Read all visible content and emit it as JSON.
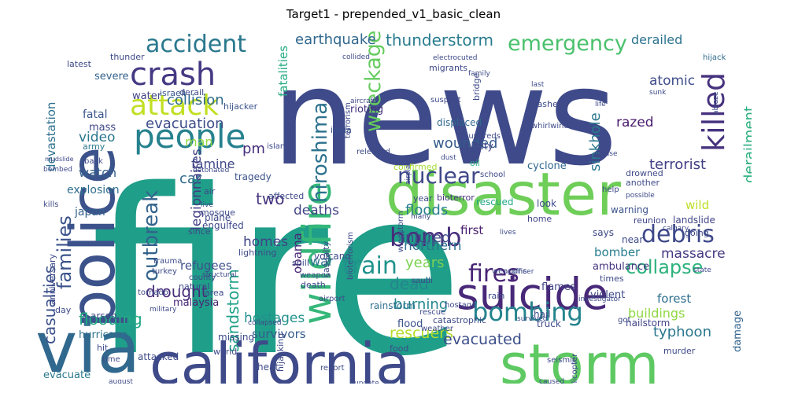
{
  "title": "Target1 - prepended_v1_basic_clean",
  "words": [
    {
      "text": "fire",
      "color": "#1f9e89",
      "vertical": false
    },
    {
      "text": "news",
      "color": "#3e4a89",
      "vertical": false
    },
    {
      "text": "disaster",
      "color": "#6ece58",
      "vertical": false
    },
    {
      "text": "police",
      "color": "#3b528b",
      "vertical": true
    },
    {
      "text": "via",
      "color": "#31688e",
      "vertical": false
    },
    {
      "text": "california",
      "color": "#3e4a89",
      "vertical": false
    },
    {
      "text": "storm",
      "color": "#5ec962",
      "vertical": false
    },
    {
      "text": "suicide",
      "color": "#482878",
      "vertical": false
    },
    {
      "text": "wildfire",
      "color": "#35b779",
      "vertical": true
    },
    {
      "text": "people",
      "color": "#26828e",
      "vertical": false
    },
    {
      "text": "crash",
      "color": "#443983",
      "vertical": false
    },
    {
      "text": "attack",
      "color": "#c2df23",
      "vertical": false
    },
    {
      "text": "accident",
      "color": "#2a788e",
      "vertical": false
    },
    {
      "text": "emergency",
      "color": "#4ac16d",
      "vertical": false
    },
    {
      "text": "killed",
      "color": "#46327e",
      "vertical": true
    },
    {
      "text": "bombing",
      "color": "#25848e",
      "vertical": false
    },
    {
      "text": "fires",
      "color": "#482475",
      "vertical": false
    },
    {
      "text": "debris",
      "color": "#3e4989",
      "vertical": false
    },
    {
      "text": "hiroshima",
      "color": "#2c728e",
      "vertical": true
    },
    {
      "text": "wreckage",
      "color": "#65cb5e",
      "vertical": true
    },
    {
      "text": "families",
      "color": "#3a538b",
      "vertical": true
    },
    {
      "text": "train",
      "color": "#20928c",
      "vertical": false
    },
    {
      "text": "bomb",
      "color": "#472d7b",
      "vertical": false
    },
    {
      "text": "nuclear",
      "color": "#3f4889",
      "vertical": false
    },
    {
      "text": "outbreak",
      "color": "#33638d",
      "vertical": true
    },
    {
      "text": "collapse",
      "color": "#2db27d",
      "vertical": false
    },
    {
      "text": "earthquake",
      "color": "#31688e",
      "vertical": false
    },
    {
      "text": "thunderstorm",
      "color": "#287c8e",
      "vertical": false
    },
    {
      "text": "derailed",
      "color": "#2c738e",
      "vertical": false
    },
    {
      "text": "evacuation",
      "color": "#3d4d8a",
      "vertical": false
    },
    {
      "text": "collision",
      "color": "#2f6b8e",
      "vertical": false
    },
    {
      "text": "wounded",
      "color": "#365c8d",
      "vertical": false
    },
    {
      "text": "razed",
      "color": "#481b6d",
      "vertical": false
    },
    {
      "text": "atomic",
      "color": "#3e4c8a",
      "vertical": false
    },
    {
      "text": "sinkhole",
      "color": "#2a778e",
      "vertical": true
    },
    {
      "text": "derailment",
      "color": "#29af7f",
      "vertical": true
    },
    {
      "text": "terrorist",
      "color": "#424086",
      "vertical": false
    },
    {
      "text": "massacre",
      "color": "#453882",
      "vertical": false
    },
    {
      "text": "forest",
      "color": "#2e6f8e",
      "vertical": false
    },
    {
      "text": "casualties",
      "color": "#3b518b",
      "vertical": true
    },
    {
      "text": "flooding",
      "color": "#22a884",
      "vertical": false
    },
    {
      "text": "drought",
      "color": "#472c7a",
      "vertical": false
    },
    {
      "text": "injured",
      "color": "#3e4a89",
      "vertical": false
    },
    {
      "text": "floods",
      "color": "#27808e",
      "vertical": false
    },
    {
      "text": "deaths",
      "color": "#414487",
      "vertical": false
    },
    {
      "text": "dead",
      "color": "#24868e",
      "vertical": false
    },
    {
      "text": "burning",
      "color": "#23888e",
      "vertical": false
    },
    {
      "text": "rescuers",
      "color": "#b5de2b",
      "vertical": false
    },
    {
      "text": "evacuated",
      "color": "#3c4f8a",
      "vertical": false
    },
    {
      "text": "typhoon",
      "color": "#2a768e",
      "vertical": false
    },
    {
      "text": "buildings",
      "color": "#90d743",
      "vertical": false
    },
    {
      "text": "northern",
      "color": "#2d708e",
      "vertical": false
    },
    {
      "text": "sandstorm",
      "color": "#1fa187",
      "vertical": true
    },
    {
      "text": "hostages",
      "color": "#21918c",
      "vertical": false
    },
    {
      "text": "survivors",
      "color": "#365d8d",
      "vertical": false
    },
    {
      "text": "homes",
      "color": "#414487",
      "vertical": false
    },
    {
      "text": "war",
      "color": "#2c738e",
      "vertical": false
    },
    {
      "text": "two",
      "color": "#46337f",
      "vertical": false
    },
    {
      "text": "years",
      "color": "#7ad151",
      "vertical": false
    },
    {
      "text": "bomber",
      "color": "#287d8e",
      "vertical": false
    },
    {
      "text": "refugees",
      "color": "#3c508b",
      "vertical": false
    },
    {
      "text": "legionnaires",
      "color": "#433d84",
      "vertical": true
    },
    {
      "text": "famine",
      "color": "#3f4788",
      "vertical": false
    },
    {
      "text": "car",
      "color": "#30698e",
      "vertical": false
    },
    {
      "text": "man",
      "color": "#90d743",
      "vertical": false
    },
    {
      "text": "pm",
      "color": "#472f7d",
      "vertical": false
    },
    {
      "text": "video",
      "color": "#2a768e",
      "vertical": false
    },
    {
      "text": "watch",
      "color": "#35608d",
      "vertical": false
    },
    {
      "text": "explosion",
      "color": "#2e6e8e",
      "vertical": false
    },
    {
      "text": "japan",
      "color": "#34618d",
      "vertical": false
    },
    {
      "text": "fatal",
      "color": "#3b528b",
      "vertical": false
    },
    {
      "text": "devastation",
      "color": "#2d708e",
      "vertical": true
    },
    {
      "text": "fatalities",
      "color": "#25ab82",
      "vertical": true
    },
    {
      "text": "obama",
      "color": "#482475",
      "vertical": true
    },
    {
      "text": "first",
      "color": "#481d6f",
      "vertical": false
    },
    {
      "text": "hurricane",
      "color": "#2c728e",
      "vertical": false
    },
    {
      "text": "evacuate",
      "color": "#2a788e",
      "vertical": false
    },
    {
      "text": "rainstorm",
      "color": "#2e6f8e",
      "vertical": false
    },
    {
      "text": "flood",
      "color": "#3b528b",
      "vertical": false
    },
    {
      "text": "hailstorm",
      "color": "#414487",
      "vertical": false
    },
    {
      "text": "damage",
      "color": "#32648e",
      "vertical": true
    },
    {
      "text": "malaysia",
      "color": "#482576",
      "vertical": false
    },
    {
      "text": "ambulance",
      "color": "#463480",
      "vertical": false
    },
    {
      "text": "wild",
      "color": "#bddf26",
      "vertical": false
    },
    {
      "text": "landslide",
      "color": "#414487",
      "vertical": false
    },
    {
      "text": "reunion",
      "color": "#404588",
      "vertical": false
    },
    {
      "text": "mass",
      "color": "#3f4788",
      "vertical": false
    },
    {
      "text": "army",
      "color": "#2a788e",
      "vertical": false
    },
    {
      "text": "water",
      "color": "#414487",
      "vertical": false
    },
    {
      "text": "israeli",
      "color": "#38598c",
      "vertical": false
    },
    {
      "text": "derail",
      "color": "#3e4c8a",
      "vertical": false
    },
    {
      "text": "hijacker",
      "color": "#3a548c",
      "vertical": false
    },
    {
      "text": "hijack",
      "color": "#2f6b8e",
      "vertical": false
    },
    {
      "text": "severe",
      "color": "#33638d",
      "vertical": false
    },
    {
      "text": "latest",
      "color": "#3e4a89",
      "vertical": false
    },
    {
      "text": "thunder",
      "color": "#3e4a89",
      "vertical": false
    },
    {
      "text": "rioting",
      "color": "#46317e",
      "vertical": false
    },
    {
      "text": "india",
      "color": "#3b528b",
      "vertical": false
    },
    {
      "text": "released",
      "color": "#3e4a89",
      "vertical": false
    },
    {
      "text": "displaced",
      "color": "#31688e",
      "vertical": false
    },
    {
      "text": "city",
      "color": "#414487",
      "vertical": false
    },
    {
      "text": "oil",
      "color": "#29af7f",
      "vertical": false
    },
    {
      "text": "school",
      "color": "#3e4a89",
      "vertical": false
    },
    {
      "text": "tragedy",
      "color": "#3b528b",
      "vertical": false
    },
    {
      "text": "island",
      "color": "#3e4a89",
      "vertical": false
    },
    {
      "text": "bioterror",
      "color": "#46307e",
      "vertical": false
    },
    {
      "text": "rescued",
      "color": "#22a785",
      "vertical": false
    },
    {
      "text": "year",
      "color": "#3e4a89",
      "vertical": false
    },
    {
      "text": "confirmed",
      "color": "#a8db34",
      "vertical": false
    },
    {
      "text": "cyclone",
      "color": "#31688e",
      "vertical": false
    },
    {
      "text": "look",
      "color": "#3e4a89",
      "vertical": false
    },
    {
      "text": "home",
      "color": "#414487",
      "vertical": false
    },
    {
      "text": "warning",
      "color": "#3b528b",
      "vertical": false
    },
    {
      "text": "going",
      "color": "#3e4a89",
      "vertical": false
    },
    {
      "text": "says",
      "color": "#3e4a89",
      "vertical": false
    },
    {
      "text": "near",
      "color": "#3e4a89",
      "vertical": false
    },
    {
      "text": "times",
      "color": "#3e4a89",
      "vertical": false
    },
    {
      "text": "state",
      "color": "#3e4a89",
      "vertical": false
    },
    {
      "text": "flames",
      "color": "#414487",
      "vertical": false
    },
    {
      "text": "violent",
      "color": "#3e4a89",
      "vertical": false
    },
    {
      "text": "hail",
      "color": "#3e4a89",
      "vertical": false
    },
    {
      "text": "truck",
      "color": "#3e4a89",
      "vertical": false
    },
    {
      "text": "murder",
      "color": "#3e4a89",
      "vertical": false
    },
    {
      "text": "catastrophic",
      "color": "#3e4a89",
      "vertical": false
    },
    {
      "text": "weather",
      "color": "#3e4a89",
      "vertical": false
    },
    {
      "text": "food",
      "color": "#3e4a89",
      "vertical": false
    },
    {
      "text": "hostage",
      "color": "#3e4a89",
      "vertical": false
    },
    {
      "text": "rescue",
      "color": "#3e4a89",
      "vertical": false
    },
    {
      "text": "rain",
      "color": "#3e4a89",
      "vertical": false
    },
    {
      "text": "airport",
      "color": "#3e4a89",
      "vertical": false
    },
    {
      "text": "death",
      "color": "#3e4a89",
      "vertical": false
    },
    {
      "text": "weapon",
      "color": "#3e4a89",
      "vertical": false
    },
    {
      "text": "weapons",
      "color": "#3e4a89",
      "vertical": false
    },
    {
      "text": "spill",
      "color": "#3e4a89",
      "vertical": false
    },
    {
      "text": "casualty",
      "color": "#3e4a89",
      "vertical": true
    },
    {
      "text": "volcano",
      "color": "#3e4a89",
      "vertical": false
    },
    {
      "text": "lightning",
      "color": "#3e4a89",
      "vertical": false
    },
    {
      "text": "plane",
      "color": "#3e4a89",
      "vertical": false
    },
    {
      "text": "engulfed",
      "color": "#3e4a89",
      "vertical": false
    },
    {
      "text": "affected",
      "color": "#3e4a89",
      "vertical": false
    },
    {
      "text": "mosque",
      "color": "#3e4a89",
      "vertical": false
    },
    {
      "text": "since",
      "color": "#3e4a89",
      "vertical": false
    },
    {
      "text": "air",
      "color": "#3e4a89",
      "vertical": false
    },
    {
      "text": "trauma",
      "color": "#3e4a89",
      "vertical": false
    },
    {
      "text": "turkey",
      "color": "#3e4a89",
      "vertical": false
    },
    {
      "text": "county",
      "color": "#3e4a89",
      "vertical": false
    },
    {
      "text": "natural",
      "color": "#3e4a89",
      "vertical": false
    },
    {
      "text": "tornado",
      "color": "#3e4a89",
      "vertical": false
    },
    {
      "text": "area",
      "color": "#3e4a89",
      "vertical": false
    },
    {
      "text": "arson",
      "color": "#3e4a89",
      "vertical": false
    },
    {
      "text": "day",
      "color": "#3e4a89",
      "vertical": false
    },
    {
      "text": "hit",
      "color": "#3e4a89",
      "vertical": false
    },
    {
      "text": "time",
      "color": "#3e4a89",
      "vertical": false
    },
    {
      "text": "attacked",
      "color": "#3e4a89",
      "vertical": false
    },
    {
      "text": "missing",
      "color": "#3e4a89",
      "vertical": false
    },
    {
      "text": "world",
      "color": "#3e4a89",
      "vertical": false
    },
    {
      "text": "heat",
      "color": "#3e4a89",
      "vertical": false
    },
    {
      "text": "hijacking",
      "color": "#3e4a89",
      "vertical": true
    },
    {
      "text": "report",
      "color": "#3e4a89",
      "vertical": false
    },
    {
      "text": "seismic",
      "color": "#3e4a89",
      "vertical": false
    },
    {
      "text": "helicopter",
      "color": "#3e4a89",
      "vertical": true
    },
    {
      "text": "collided",
      "color": "#3e4a89",
      "vertical": false
    },
    {
      "text": "electrocuted",
      "color": "#3e4a89",
      "vertical": false
    },
    {
      "text": "migrants",
      "color": "#3e4a89",
      "vertical": false
    },
    {
      "text": "bridge",
      "color": "#3e4a89",
      "vertical": true
    },
    {
      "text": "suspect",
      "color": "#3e4a89",
      "vertical": false
    },
    {
      "text": "crashed",
      "color": "#3e4a89",
      "vertical": false
    },
    {
      "text": "whirlwind",
      "color": "#3e4a89",
      "vertical": false
    },
    {
      "text": "hundreds",
      "color": "#3e4a89",
      "vertical": false
    },
    {
      "text": "terrorism",
      "color": "#3e4a89",
      "vertical": true
    },
    {
      "text": "windstorm",
      "color": "#3e4a89",
      "vertical": true
    },
    {
      "text": "bioterrorism",
      "color": "#3e4a89",
      "vertical": true
    },
    {
      "text": "collapsed",
      "color": "#3e4a89",
      "vertical": false
    },
    {
      "text": "bombed",
      "color": "#3e4a89",
      "vertical": false
    },
    {
      "text": "back",
      "color": "#3e4a89",
      "vertical": false
    },
    {
      "text": "live",
      "color": "#3e4a89",
      "vertical": false
    },
    {
      "text": "kills",
      "color": "#3e4a89",
      "vertical": false
    },
    {
      "text": "mudslide",
      "color": "#3e4a89",
      "vertical": false
    },
    {
      "text": "calgary",
      "color": "#3e4a89",
      "vertical": false
    },
    {
      "text": "investigator",
      "color": "#3e4a89",
      "vertical": false
    },
    {
      "text": "drowned",
      "color": "#3e4a89",
      "vertical": false
    },
    {
      "text": "another",
      "color": "#3e4a89",
      "vertical": false
    },
    {
      "text": "help",
      "color": "#3e4a89",
      "vertical": false
    },
    {
      "text": "possible",
      "color": "#3e4a89",
      "vertical": false
    },
    {
      "text": "officer",
      "color": "#3e4a89",
      "vertical": false
    },
    {
      "text": "survived",
      "color": "#3e4a89",
      "vertical": false
    },
    {
      "text": "family",
      "color": "#3e4a89",
      "vertical": false
    },
    {
      "text": "last",
      "color": "#3e4a89",
      "vertical": false
    },
    {
      "text": "got",
      "color": "#3e4a89",
      "vertical": false
    },
    {
      "text": "anniversary",
      "color": "#3e4a89",
      "vertical": true
    },
    {
      "text": "life",
      "color": "#3e4a89",
      "vertical": false
    },
    {
      "text": "please",
      "color": "#3e4a89",
      "vertical": false
    },
    {
      "text": "lives",
      "color": "#3e4a89",
      "vertical": false
    },
    {
      "text": "many",
      "color": "#3e4a89",
      "vertical": false
    },
    {
      "text": "dust",
      "color": "#3e4a89",
      "vertical": false
    },
    {
      "text": "august",
      "color": "#3e4a89",
      "vertical": false
    },
    {
      "text": "military",
      "color": "#3e4a89",
      "vertical": false
    },
    {
      "text": "structural",
      "color": "#3e4a89",
      "vertical": false
    },
    {
      "text": "caused",
      "color": "#3e4a89",
      "vertical": false
    },
    {
      "text": "update",
      "color": "#3e4a89",
      "vertical": false
    },
    {
      "text": "detonated",
      "color": "#3e4a89",
      "vertical": false
    },
    {
      "text": "saudi",
      "color": "#3e4a89",
      "vertical": false
    },
    {
      "text": "today",
      "color": "#3e4a89",
      "vertical": true
    },
    {
      "text": "sunk",
      "color": "#3e4a89",
      "vertical": false
    },
    {
      "text": "ablaze",
      "color": "#3e4a89",
      "vertical": true
    },
    {
      "text": "aircraft",
      "color": "#3e4a89",
      "vertical": false
    },
    {
      "text": "airplane",
      "color": "#3e4a89",
      "vertical": true
    }
  ]
}
